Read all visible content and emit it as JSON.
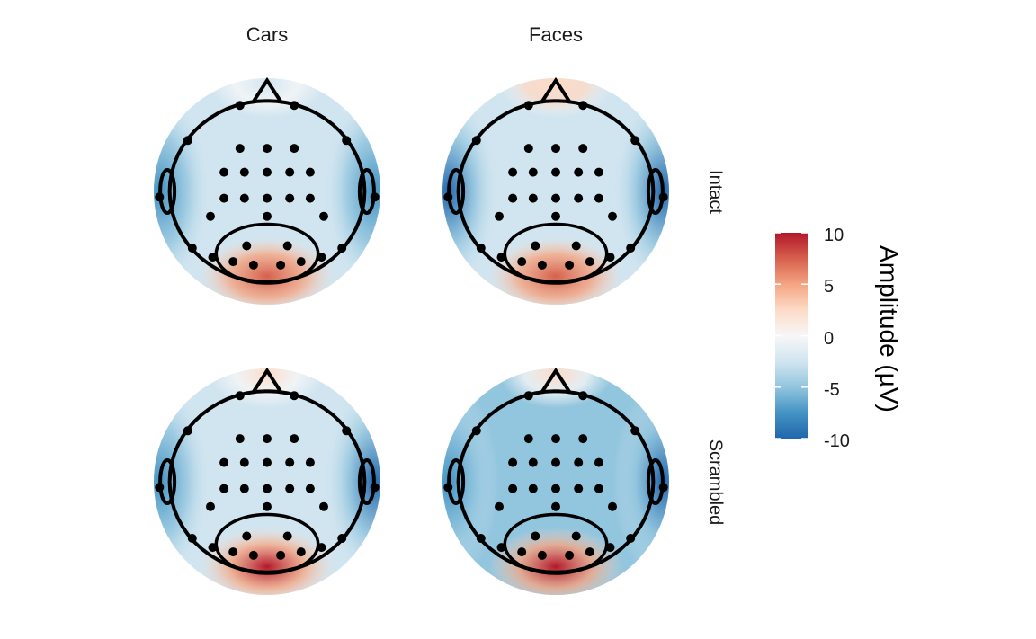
{
  "chart_data": {
    "type": "heatmap",
    "subtype": "scalp-topography-facets",
    "columns": [
      "Cars",
      "Faces"
    ],
    "rows": [
      "Intact",
      "Scrambled"
    ],
    "legend": {
      "title": "Amplitude (µV)",
      "range": [
        -10,
        10
      ],
      "ticks": [
        "10",
        "5",
        "0",
        "-5",
        "-10"
      ],
      "placement": "right",
      "colors": [
        "#2166ac",
        "#4393c3",
        "#92c5de",
        "#d1e5f0",
        "#f7f7f7",
        "#fddbc7",
        "#f4a582",
        "#d6604d",
        "#b2182b"
      ]
    },
    "contour_color": "#000000",
    "electrode_color": "#000000",
    "panels": [
      {
        "column": "Cars",
        "row": "Intact",
        "frontal": -2,
        "occipital": 8,
        "left": -7,
        "right": -8,
        "center": -2
      },
      {
        "column": "Faces",
        "row": "Intact",
        "frontal": 3,
        "occipital": 7,
        "left": -9,
        "right": -9,
        "center": -3
      },
      {
        "column": "Cars",
        "row": "Scrambled",
        "frontal": 2,
        "occipital": 9,
        "left": -7,
        "right": -10,
        "center": -3
      },
      {
        "column": "Faces",
        "row": "Scrambled",
        "frontal": 2,
        "occipital": 10,
        "left": -8,
        "right": -9,
        "center": -6
      }
    ]
  }
}
